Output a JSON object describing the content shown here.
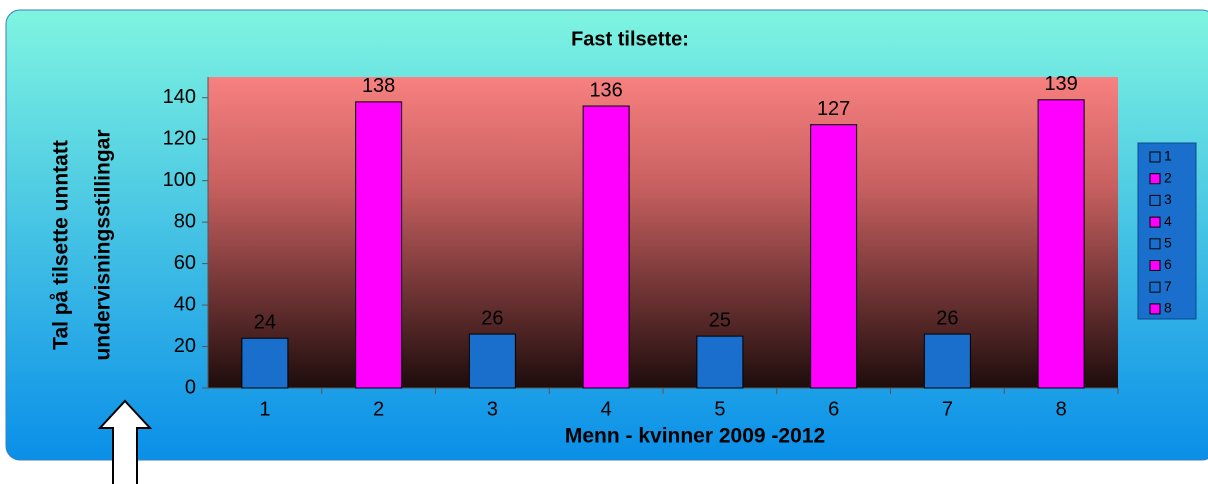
{
  "chart_data": {
    "type": "bar",
    "title": "Fast tilsette:",
    "y_label": [
      "Tal på tilsette unntatt",
      "undervisningsstillingar"
    ],
    "x_label": "Menn - kvinner 2009 -2012",
    "categories": [
      "1",
      "2",
      "3",
      "4",
      "5",
      "6",
      "7",
      "8"
    ],
    "values": [
      24,
      138,
      26,
      136,
      25,
      127,
      26,
      139
    ],
    "colors": [
      "#1a6fcc",
      "#ff00ff",
      "#1a6fcc",
      "#ff00ff",
      "#1a6fcc",
      "#ff00ff",
      "#1a6fcc",
      "#ff00ff"
    ],
    "ylim": [
      0,
      150
    ],
    "yticks": [
      0,
      20,
      40,
      60,
      80,
      100,
      120,
      140
    ],
    "legend": "right"
  }
}
